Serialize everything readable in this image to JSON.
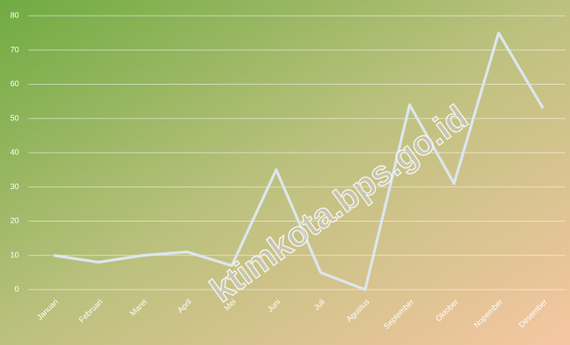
{
  "chart_data": {
    "type": "line",
    "categories": [
      "Januari",
      "Februari",
      "Maret",
      "April",
      "Mei",
      "Juni",
      "Juli",
      "Agustus",
      "September",
      "Oktober",
      "Nopember",
      "Desember"
    ],
    "values": [
      10,
      8,
      10,
      11,
      7,
      35,
      5,
      0,
      54,
      31,
      75,
      53
    ],
    "color": "#dde6ee",
    "ylim": [
      0,
      80
    ],
    "yticks": [
      0,
      10,
      20,
      30,
      40,
      50,
      60,
      70,
      80
    ],
    "grid": true,
    "watermark": "ktimkota.bps.go.id"
  }
}
